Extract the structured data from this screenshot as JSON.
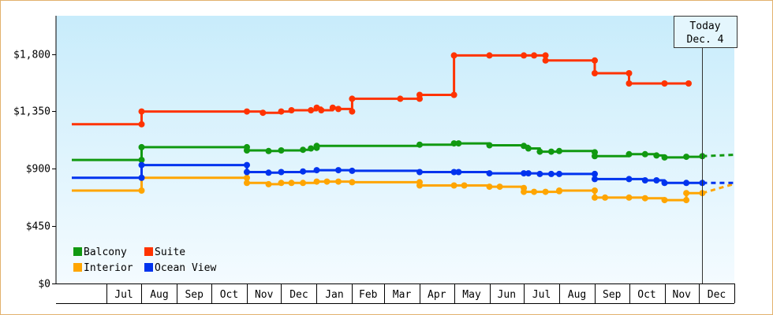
{
  "chart_data": {
    "type": "line",
    "line_style": "step",
    "x_axis": {
      "months": [
        "Jul",
        "Aug",
        "Sep",
        "Oct",
        "Nov",
        "Dec",
        "Jan",
        "Feb",
        "Mar",
        "Apr",
        "May",
        "Jun",
        "Jul",
        "Aug",
        "Sep",
        "Oct",
        "Nov",
        "Dec"
      ],
      "start": "2012-06-01",
      "end": "2013-12-31"
    },
    "y_axis": {
      "ticks": [
        0,
        450,
        900,
        1350,
        1800
      ],
      "tick_labels": [
        "$0",
        "$450",
        "$900",
        "$1,350",
        "$1,800"
      ],
      "ylim": [
        0,
        2100
      ]
    },
    "background_gradient": [
      "#c8ecfb",
      "#f4fbff"
    ],
    "today_marker": {
      "line1": "Today",
      "line2": "Dec. 4",
      "date": "2013-12-04"
    },
    "legend": [
      {
        "name": "Balcony",
        "color": "#119911"
      },
      {
        "name": "Suite",
        "color": "#ff3300"
      },
      {
        "name": "Interior",
        "color": "#ffa500"
      },
      {
        "name": "Ocean View",
        "color": "#0033ee"
      }
    ],
    "series": [
      {
        "name": "Balcony",
        "color": "#119911",
        "points": [
          [
            "2012-06-01",
            969
          ],
          [
            "2012-08-01",
            969
          ],
          [
            "2012-08-01",
            1069
          ],
          [
            "2012-11-01",
            1069
          ],
          [
            "2012-11-01",
            1044
          ],
          [
            "2012-11-20",
            1039
          ],
          [
            "2012-12-01",
            1044
          ],
          [
            "2012-12-20",
            1049
          ],
          [
            "2012-12-27",
            1059
          ],
          [
            "2013-01-01",
            1064
          ],
          [
            "2013-01-01",
            1079
          ],
          [
            "2013-04-01",
            1089
          ],
          [
            "2013-05-01",
            1099
          ],
          [
            "2013-05-05",
            1099
          ],
          [
            "2013-06-01",
            1084
          ],
          [
            "2013-07-01",
            1079
          ],
          [
            "2013-07-05",
            1059
          ],
          [
            "2013-07-15",
            1034
          ],
          [
            "2013-07-25",
            1034
          ],
          [
            "2013-08-01",
            1039
          ],
          [
            "2013-09-01",
            1029
          ],
          [
            "2013-09-01",
            999
          ],
          [
            "2013-10-01",
            1014
          ],
          [
            "2013-10-15",
            1014
          ],
          [
            "2013-10-25",
            1004
          ],
          [
            "2013-11-01",
            989
          ],
          [
            "2013-11-20",
            994
          ],
          [
            "2013-12-04",
            999
          ]
        ],
        "projection": [
          [
            "2013-12-04",
            999
          ],
          [
            "2013-12-31",
            1009
          ]
        ]
      },
      {
        "name": "Suite",
        "color": "#ff3300",
        "points": [
          [
            "2012-06-01",
            1249
          ],
          [
            "2012-08-01",
            1249
          ],
          [
            "2012-08-01",
            1349
          ],
          [
            "2012-11-01",
            1349
          ],
          [
            "2012-11-15",
            1339
          ],
          [
            "2012-12-01",
            1349
          ],
          [
            "2012-12-10",
            1359
          ],
          [
            "2012-12-27",
            1359
          ],
          [
            "2013-01-01",
            1379
          ],
          [
            "2013-01-05",
            1359
          ],
          [
            "2013-01-15",
            1379
          ],
          [
            "2013-01-20",
            1369
          ],
          [
            "2013-02-01",
            1349
          ],
          [
            "2013-02-01",
            1449
          ],
          [
            "2013-03-15",
            1449
          ],
          [
            "2013-04-01",
            1449
          ],
          [
            "2013-04-01",
            1479
          ],
          [
            "2013-05-01",
            1479
          ],
          [
            "2013-05-01",
            1789
          ],
          [
            "2013-06-01",
            1789
          ],
          [
            "2013-07-01",
            1789
          ],
          [
            "2013-07-10",
            1789
          ],
          [
            "2013-07-20",
            1789
          ],
          [
            "2013-07-20",
            1749
          ],
          [
            "2013-09-01",
            1749
          ],
          [
            "2013-09-01",
            1649
          ],
          [
            "2013-10-01",
            1649
          ],
          [
            "2013-10-01",
            1569
          ],
          [
            "2013-11-01",
            1569
          ],
          [
            "2013-11-22",
            1569
          ]
        ],
        "projection": []
      },
      {
        "name": "Interior",
        "color": "#ffa500",
        "points": [
          [
            "2012-06-01",
            729
          ],
          [
            "2012-08-01",
            729
          ],
          [
            "2012-08-01",
            829
          ],
          [
            "2012-11-01",
            829
          ],
          [
            "2012-11-01",
            789
          ],
          [
            "2012-11-20",
            779
          ],
          [
            "2012-12-01",
            789
          ],
          [
            "2012-12-10",
            789
          ],
          [
            "2012-12-20",
            789
          ],
          [
            "2013-01-01",
            799
          ],
          [
            "2013-01-10",
            799
          ],
          [
            "2013-01-20",
            799
          ],
          [
            "2013-02-01",
            794
          ],
          [
            "2013-04-01",
            794
          ],
          [
            "2013-04-01",
            769
          ],
          [
            "2013-05-01",
            769
          ],
          [
            "2013-05-10",
            769
          ],
          [
            "2013-06-01",
            759
          ],
          [
            "2013-06-10",
            759
          ],
          [
            "2013-07-01",
            749
          ],
          [
            "2013-07-01",
            719
          ],
          [
            "2013-07-10",
            719
          ],
          [
            "2013-07-20",
            719
          ],
          [
            "2013-08-01",
            724
          ],
          [
            "2013-08-01",
            729
          ],
          [
            "2013-09-01",
            729
          ],
          [
            "2013-09-01",
            674
          ],
          [
            "2013-09-10",
            674
          ],
          [
            "2013-10-01",
            674
          ],
          [
            "2013-10-15",
            669
          ],
          [
            "2013-11-01",
            654
          ],
          [
            "2013-11-20",
            654
          ],
          [
            "2013-11-20",
            709
          ],
          [
            "2013-12-04",
            709
          ]
        ],
        "projection": [
          [
            "2013-12-04",
            709
          ],
          [
            "2013-12-31",
            779
          ]
        ]
      },
      {
        "name": "Ocean View",
        "color": "#0033ee",
        "points": [
          [
            "2012-06-01",
            829
          ],
          [
            "2012-08-01",
            829
          ],
          [
            "2012-08-01",
            929
          ],
          [
            "2012-11-01",
            929
          ],
          [
            "2012-11-01",
            874
          ],
          [
            "2012-11-20",
            869
          ],
          [
            "2012-12-01",
            874
          ],
          [
            "2012-12-20",
            879
          ],
          [
            "2013-01-01",
            889
          ],
          [
            "2013-01-20",
            889
          ],
          [
            "2013-02-01",
            884
          ],
          [
            "2013-04-01",
            874
          ],
          [
            "2013-05-01",
            874
          ],
          [
            "2013-05-05",
            874
          ],
          [
            "2013-06-01",
            864
          ],
          [
            "2013-07-01",
            864
          ],
          [
            "2013-07-05",
            864
          ],
          [
            "2013-07-15",
            859
          ],
          [
            "2013-07-25",
            859
          ],
          [
            "2013-08-01",
            859
          ],
          [
            "2013-09-01",
            859
          ],
          [
            "2013-09-01",
            819
          ],
          [
            "2013-10-01",
            819
          ],
          [
            "2013-10-15",
            809
          ],
          [
            "2013-10-25",
            809
          ],
          [
            "2013-11-01",
            789
          ],
          [
            "2013-11-20",
            789
          ],
          [
            "2013-12-04",
            789
          ]
        ],
        "projection": [
          [
            "2013-12-04",
            789
          ],
          [
            "2013-12-31",
            789
          ]
        ]
      }
    ]
  }
}
